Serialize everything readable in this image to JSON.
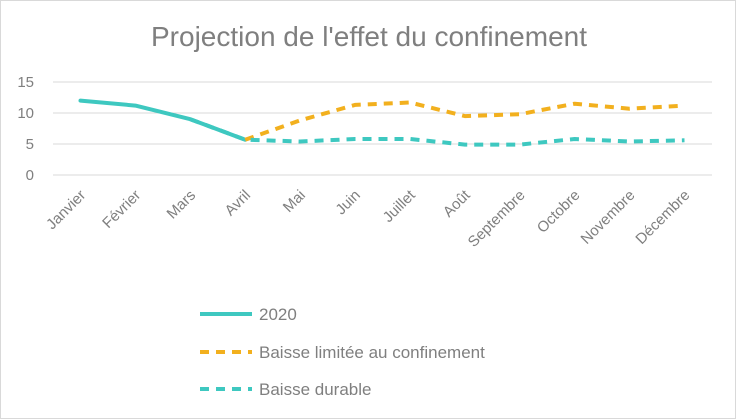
{
  "chart_data": {
    "type": "line",
    "title": "Projection de l'effet du confinement",
    "categories": [
      "Janvier",
      "Février",
      "Mars",
      "Avril",
      "Mai",
      "Juin",
      "Juillet",
      "Août",
      "Septembre",
      "Octobre",
      "Novembre",
      "Décembre"
    ],
    "yticks": [
      "0",
      "5",
      "10",
      "15"
    ],
    "ylim": [
      0,
      15
    ],
    "grid": "horizontal",
    "legend_position": "bottom",
    "series": [
      {
        "name": "2020",
        "style": "solid",
        "color": "#3ec8c0",
        "values": [
          12.0,
          11.2,
          9.0,
          5.7,
          null,
          null,
          null,
          null,
          null,
          null,
          null,
          null
        ]
      },
      {
        "name": "Baisse limitée au confinement",
        "style": "dashed",
        "color": "#f2b01e",
        "values": [
          null,
          null,
          null,
          5.7,
          8.8,
          11.3,
          11.7,
          9.5,
          9.8,
          11.5,
          10.7,
          11.2
        ]
      },
      {
        "name": "Baisse durable",
        "style": "dashed",
        "color": "#3ec8c0",
        "values": [
          null,
          null,
          9.0,
          5.7,
          5.4,
          5.8,
          5.8,
          4.9,
          4.9,
          5.8,
          5.4,
          5.6
        ]
      }
    ]
  }
}
